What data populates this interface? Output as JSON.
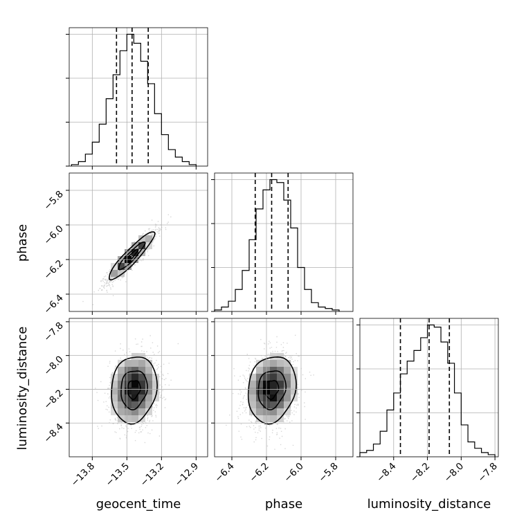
{
  "chart_data": {
    "type": "corner",
    "title": "",
    "parameters": [
      {
        "key": "geocent_time",
        "label": "geocent_time",
        "range": [
          -14.0,
          -12.8
        ],
        "ticks": [
          -13.8,
          -13.5,
          -13.2,
          -12.9
        ],
        "tick_labels": [
          "−13.8",
          "−13.5",
          "−13.2",
          "−12.9"
        ],
        "median": -13.455,
        "lower": -13.59,
        "upper": -13.315,
        "hist_bins": [
          -13.98,
          -13.92,
          -13.86,
          -13.8,
          -13.74,
          -13.68,
          -13.62,
          -13.56,
          -13.5,
          -13.44,
          -13.38,
          -13.32,
          -13.26,
          -13.2,
          -13.14,
          -13.08,
          -13.02,
          -12.96,
          -12.9
        ],
        "hist_counts": [
          1,
          3,
          8,
          16,
          28,
          45,
          61,
          77,
          88,
          82,
          70,
          55,
          35,
          21,
          11,
          6,
          3,
          1
        ]
      },
      {
        "key": "phase",
        "label": "phase",
        "range": [
          -6.5,
          -5.7
        ],
        "ticks": [
          -6.4,
          -6.2,
          -6.0,
          -5.8
        ],
        "tick_labels": [
          "−6.4",
          "−6.2",
          "−6.0",
          "−5.8"
        ],
        "median": -6.17,
        "lower": -6.265,
        "upper": -6.075,
        "hist_bins": [
          -6.5,
          -6.46,
          -6.42,
          -6.38,
          -6.34,
          -6.3,
          -6.26,
          -6.22,
          -6.18,
          -6.14,
          -6.1,
          -6.06,
          -6.02,
          -5.98,
          -5.94,
          -5.9,
          -5.86,
          -5.82,
          -5.78
        ],
        "hist_counts": [
          1,
          3,
          7,
          15,
          28,
          49,
          70,
          83,
          90,
          88,
          76,
          57,
          30,
          15,
          6,
          3,
          2,
          1
        ]
      },
      {
        "key": "luminosity_distance",
        "label": "luminosity_distance",
        "range": [
          -8.6,
          -7.78
        ],
        "ticks": [
          -8.4,
          -8.2,
          -8.0,
          -7.8
        ],
        "tick_labels": [
          "−8.4",
          "−8.2",
          "−8.0",
          "−7.8"
        ],
        "median": -8.19,
        "lower": -8.36,
        "upper": -8.07,
        "hist_bins": [
          -8.6,
          -8.56,
          -8.52,
          -8.48,
          -8.44,
          -8.4,
          -8.36,
          -8.32,
          -8.28,
          -8.24,
          -8.2,
          -8.16,
          -8.12,
          -8.08,
          -8.04,
          -8.0,
          -7.96,
          -7.92,
          -7.88,
          -7.84,
          -7.8
        ],
        "hist_counts": [
          2,
          3,
          6,
          12,
          22,
          30,
          39,
          45,
          50,
          56,
          62,
          61,
          54,
          44,
          30,
          15,
          7,
          4,
          2,
          1
        ]
      }
    ],
    "pairs": [
      {
        "row": 1,
        "col": 0,
        "x": "geocent_time",
        "y": "phase",
        "center": [
          -13.46,
          -6.18
        ],
        "sd": [
          0.1,
          0.07
        ],
        "correlation": 0.92,
        "levels": [
          0.39,
          0.86
        ]
      },
      {
        "row": 2,
        "col": 0,
        "x": "geocent_time",
        "y": "luminosity_distance",
        "center": [
          -13.44,
          -8.2
        ],
        "sd": [
          0.1,
          0.1
        ],
        "correlation": 0.12,
        "levels": [
          0.39,
          0.86
        ]
      },
      {
        "row": 2,
        "col": 1,
        "x": "phase",
        "y": "luminosity_distance",
        "center": [
          -6.17,
          -8.2
        ],
        "sd": [
          0.07,
          0.1
        ],
        "correlation": 0.15,
        "levels": [
          0.39,
          0.86
        ]
      }
    ],
    "grid": true,
    "quantile_lines": "dashed"
  }
}
